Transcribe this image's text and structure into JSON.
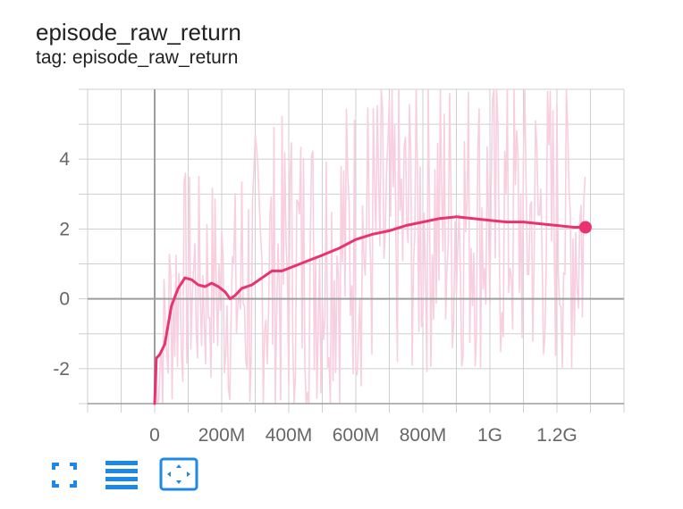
{
  "card": {
    "title": "episode_raw_return",
    "subtitle": "tag: episode_raw_return"
  },
  "toolbar": {
    "buttons": [
      {
        "icon": "fullscreen-icon"
      },
      {
        "icon": "list-lines-icon"
      },
      {
        "icon": "fit-domain-icon"
      }
    ]
  },
  "colors": {
    "series": "#e8336e",
    "series_raw": "#f8cfdf",
    "grid": "#cfcfcf",
    "axis": "#9e9e9e",
    "tick_text": "#666666",
    "toolbar_icon": "#1e88e5"
  },
  "chart_data": {
    "type": "line",
    "title": "episode_raw_return",
    "xlabel": "",
    "ylabel": "",
    "xlim": [
      -200000000,
      1400000000
    ],
    "ylim": [
      -3,
      6
    ],
    "xticks": [
      0,
      200000000,
      400000000,
      600000000,
      800000000,
      1000000000,
      1200000000
    ],
    "xtick_labels": [
      "0",
      "200M",
      "400M",
      "600M",
      "800M",
      "1G",
      "1.2G"
    ],
    "yticks": [
      -2,
      0,
      2,
      4
    ],
    "ytick_labels": [
      "-2",
      "0",
      "2",
      "4"
    ],
    "grid": true,
    "series": [
      {
        "name": "",
        "style": "smoothed",
        "x": [
          0,
          5000000,
          15000000,
          30000000,
          50000000,
          70000000,
          90000000,
          110000000,
          130000000,
          150000000,
          170000000,
          190000000,
          210000000,
          225000000,
          240000000,
          260000000,
          290000000,
          320000000,
          350000000,
          380000000,
          420000000,
          460000000,
          500000000,
          550000000,
          600000000,
          650000000,
          700000000,
          750000000,
          800000000,
          850000000,
          900000000,
          950000000,
          1000000000,
          1050000000,
          1100000000,
          1150000000,
          1200000000,
          1250000000,
          1285000000
        ],
        "y": [
          -3.0,
          -1.7,
          -1.6,
          -1.3,
          -0.2,
          0.3,
          0.6,
          0.55,
          0.4,
          0.35,
          0.45,
          0.35,
          0.2,
          0.0,
          0.1,
          0.3,
          0.4,
          0.6,
          0.8,
          0.8,
          0.95,
          1.1,
          1.25,
          1.45,
          1.7,
          1.85,
          1.95,
          2.1,
          2.2,
          2.3,
          2.35,
          2.3,
          2.25,
          2.2,
          2.2,
          2.15,
          2.1,
          2.05,
          2.05
        ]
      }
    ]
  }
}
